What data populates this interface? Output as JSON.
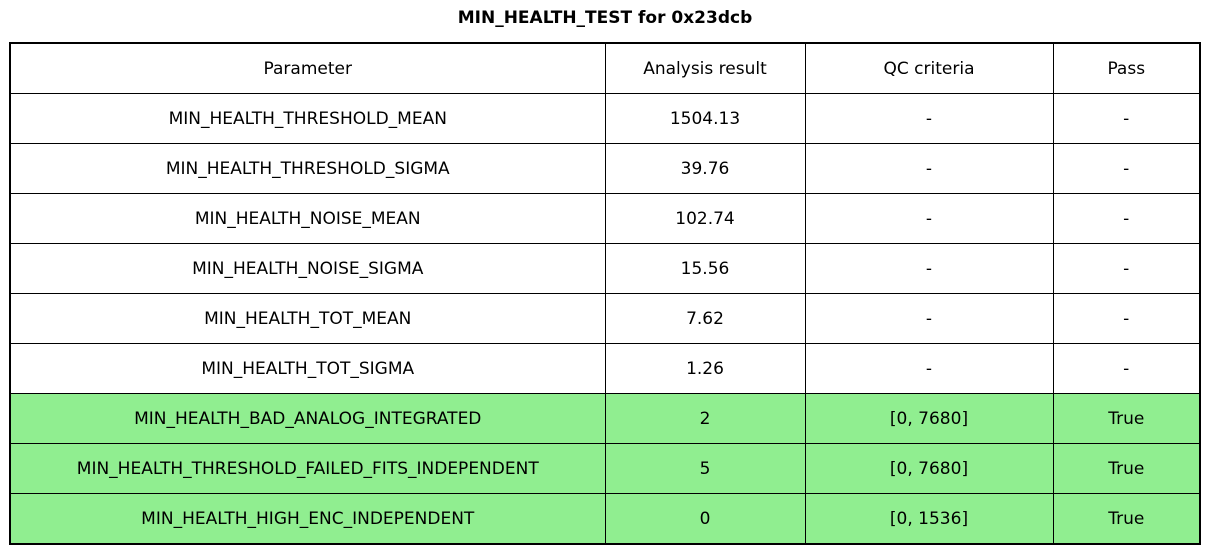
{
  "title": "MIN_HEALTH_TEST for 0x23dcb",
  "chart_data": {
    "type": "table",
    "title": "MIN_HEALTH_TEST for 0x23dcb",
    "columns": [
      "Parameter",
      "Analysis result",
      "QC criteria",
      "Pass"
    ],
    "rows": [
      {
        "cells": [
          "MIN_HEALTH_THRESHOLD_MEAN",
          "1504.13",
          "-",
          "-"
        ],
        "highlight": false
      },
      {
        "cells": [
          "MIN_HEALTH_THRESHOLD_SIGMA",
          "39.76",
          "-",
          "-"
        ],
        "highlight": false
      },
      {
        "cells": [
          "MIN_HEALTH_NOISE_MEAN",
          "102.74",
          "-",
          "-"
        ],
        "highlight": false
      },
      {
        "cells": [
          "MIN_HEALTH_NOISE_SIGMA",
          "15.56",
          "-",
          "-"
        ],
        "highlight": false
      },
      {
        "cells": [
          "MIN_HEALTH_TOT_MEAN",
          "7.62",
          "-",
          "-"
        ],
        "highlight": false
      },
      {
        "cells": [
          "MIN_HEALTH_TOT_SIGMA",
          "1.26",
          "-",
          "-"
        ],
        "highlight": false
      },
      {
        "cells": [
          "MIN_HEALTH_BAD_ANALOG_INTEGRATED",
          "2",
          "[0, 7680]",
          "True"
        ],
        "highlight": true
      },
      {
        "cells": [
          "MIN_HEALTH_THRESHOLD_FAILED_FITS_INDEPENDENT",
          "5",
          "[0, 7680]",
          "True"
        ],
        "highlight": true
      },
      {
        "cells": [
          "MIN_HEALTH_HIGH_ENC_INDEPENDENT",
          "0",
          "[0, 1536]",
          "True"
        ],
        "highlight": true
      }
    ]
  },
  "colors": {
    "pass_row_background": "#90ee90",
    "border": "#000000",
    "text": "#000000",
    "background": "#ffffff"
  }
}
